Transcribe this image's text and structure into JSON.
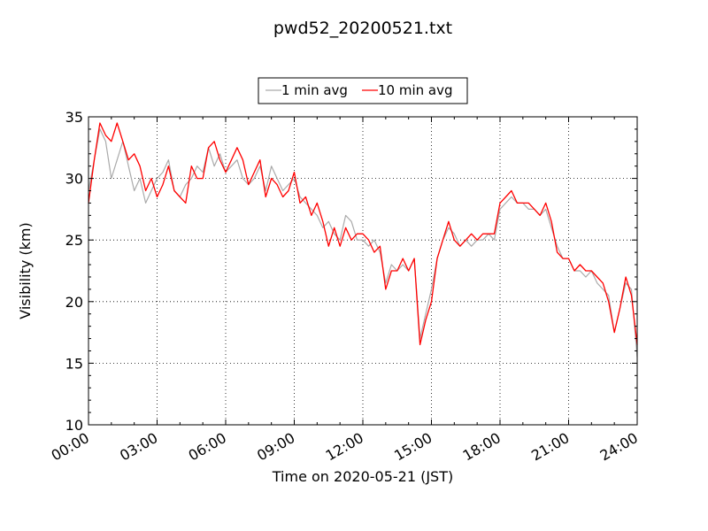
{
  "chart_data": {
    "type": "line",
    "title": "pwd52_20200521.txt",
    "xlabel": "Time on 2020-05-21 (JST)",
    "ylabel": "Visibility (km)",
    "xlim": [
      0,
      24
    ],
    "ylim": [
      10,
      35
    ],
    "x_unit": "hours",
    "x_ticks": [
      "00:00",
      "03:00",
      "06:00",
      "09:00",
      "12:00",
      "15:00",
      "18:00",
      "21:00",
      "24:00"
    ],
    "y_ticks": [
      "10",
      "15",
      "20",
      "25",
      "30",
      "35"
    ],
    "grid": true,
    "legend_position": "top-center, above plot",
    "series": [
      {
        "name": "1 min avg",
        "color": "#aaaaaa",
        "x": [
          0.0,
          0.25,
          0.5,
          0.75,
          1.0,
          1.25,
          1.5,
          1.75,
          2.0,
          2.25,
          2.5,
          2.75,
          3.0,
          3.25,
          3.5,
          3.75,
          4.0,
          4.25,
          4.5,
          4.75,
          5.0,
          5.25,
          5.5,
          5.75,
          6.0,
          6.25,
          6.5,
          6.75,
          7.0,
          7.25,
          7.5,
          7.75,
          8.0,
          8.25,
          8.5,
          8.75,
          9.0,
          9.25,
          9.5,
          9.75,
          10.0,
          10.25,
          10.5,
          10.75,
          11.0,
          11.25,
          11.5,
          11.75,
          12.0,
          12.25,
          12.5,
          12.75,
          13.0,
          13.25,
          13.5,
          13.75,
          14.0,
          14.25,
          14.5,
          14.75,
          15.0,
          15.25,
          15.5,
          15.75,
          16.0,
          16.25,
          16.5,
          16.75,
          17.0,
          17.25,
          17.5,
          17.75,
          18.0,
          18.25,
          18.5,
          18.75,
          19.0,
          19.25,
          19.5,
          19.75,
          20.0,
          20.25,
          20.5,
          20.75,
          21.0,
          21.25,
          21.5,
          21.75,
          22.0,
          22.25,
          22.5,
          22.75,
          23.0,
          23.25,
          23.5,
          23.75,
          24.0
        ],
        "values": [
          29.0,
          31.5,
          34.0,
          33.0,
          30.0,
          31.5,
          33.0,
          31.0,
          29.0,
          30.0,
          28.0,
          29.0,
          30.0,
          30.5,
          31.5,
          29.0,
          28.5,
          29.5,
          30.0,
          31.0,
          30.5,
          32.5,
          31.0,
          32.0,
          30.5,
          31.0,
          31.5,
          30.0,
          29.5,
          30.0,
          31.0,
          29.0,
          31.0,
          30.0,
          29.0,
          29.5,
          30.0,
          28.5,
          28.0,
          27.5,
          27.0,
          26.0,
          26.5,
          25.5,
          25.0,
          27.0,
          26.5,
          25.0,
          25.0,
          24.5,
          25.0,
          24.0,
          21.5,
          23.0,
          22.5,
          23.0,
          22.5,
          23.5,
          17.0,
          19.0,
          21.0,
          23.5,
          25.0,
          26.0,
          25.5,
          24.5,
          25.0,
          24.5,
          25.0,
          25.0,
          25.5,
          25.0,
          27.5,
          28.0,
          28.5,
          28.0,
          28.0,
          27.5,
          27.5,
          27.0,
          27.5,
          26.0,
          24.5,
          23.5,
          23.5,
          22.5,
          22.5,
          22.0,
          22.5,
          21.5,
          21.0,
          20.5,
          17.5,
          19.5,
          21.5,
          21.0,
          15.5
        ]
      },
      {
        "name": "10 min avg",
        "color": "#ff0000",
        "x": [
          0.0,
          0.25,
          0.5,
          0.75,
          1.0,
          1.25,
          1.5,
          1.75,
          2.0,
          2.25,
          2.5,
          2.75,
          3.0,
          3.25,
          3.5,
          3.75,
          4.0,
          4.25,
          4.5,
          4.75,
          5.0,
          5.25,
          5.5,
          5.75,
          6.0,
          6.25,
          6.5,
          6.75,
          7.0,
          7.25,
          7.5,
          7.75,
          8.0,
          8.25,
          8.5,
          8.75,
          9.0,
          9.25,
          9.5,
          9.75,
          10.0,
          10.25,
          10.5,
          10.75,
          11.0,
          11.25,
          11.5,
          11.75,
          12.0,
          12.25,
          12.5,
          12.75,
          13.0,
          13.25,
          13.5,
          13.75,
          14.0,
          14.25,
          14.5,
          14.75,
          15.0,
          15.25,
          15.5,
          15.75,
          16.0,
          16.25,
          16.5,
          16.75,
          17.0,
          17.25,
          17.5,
          17.75,
          18.0,
          18.25,
          18.5,
          18.75,
          19.0,
          19.25,
          19.5,
          19.75,
          20.0,
          20.25,
          20.5,
          20.75,
          21.0,
          21.25,
          21.5,
          21.75,
          22.0,
          22.25,
          22.5,
          22.75,
          23.0,
          23.25,
          23.5,
          23.75,
          24.0
        ],
        "values": [
          28.0,
          31.5,
          34.5,
          33.5,
          33.0,
          34.5,
          33.0,
          31.5,
          32.0,
          31.0,
          29.0,
          30.0,
          28.5,
          29.5,
          31.0,
          29.0,
          28.5,
          28.0,
          31.0,
          30.0,
          30.0,
          32.5,
          33.0,
          31.5,
          30.5,
          31.5,
          32.5,
          31.5,
          29.5,
          30.5,
          31.5,
          28.5,
          30.0,
          29.5,
          28.5,
          29.0,
          30.5,
          28.0,
          28.5,
          27.0,
          28.0,
          26.5,
          24.5,
          26.0,
          24.5,
          26.0,
          25.0,
          25.5,
          25.5,
          25.0,
          24.0,
          24.5,
          21.0,
          22.5,
          22.5,
          23.5,
          22.5,
          23.5,
          16.5,
          18.5,
          20.0,
          23.5,
          25.0,
          26.5,
          25.0,
          24.5,
          25.0,
          25.5,
          25.0,
          25.5,
          25.5,
          25.5,
          28.0,
          28.5,
          29.0,
          28.0,
          28.0,
          28.0,
          27.5,
          27.0,
          28.0,
          26.5,
          24.0,
          23.5,
          23.5,
          22.5,
          23.0,
          22.5,
          22.5,
          22.0,
          21.5,
          20.0,
          17.5,
          19.5,
          22.0,
          20.5,
          16.5
        ]
      }
    ]
  }
}
